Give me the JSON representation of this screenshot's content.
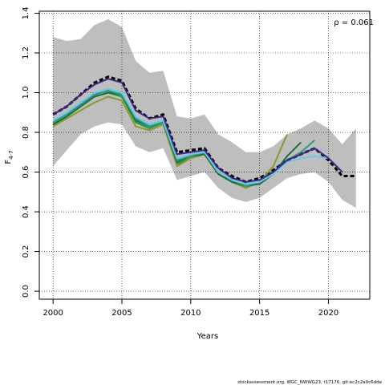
{
  "chart_data": {
    "type": "line",
    "xlabel": "Years",
    "ylabel": "F",
    "ylabel_subscript": "4-7",
    "xlim": [
      1999,
      2023
    ],
    "ylim": [
      -0.04,
      1.41
    ],
    "xticks": [
      2000,
      2005,
      2010,
      2015,
      2020
    ],
    "yticks": [
      0.0,
      0.2,
      0.4,
      0.6,
      0.8,
      1.0,
      1.2,
      1.4
    ],
    "ytick_labels": [
      "0.0",
      "0.2",
      "0.4",
      "0.6",
      "0.8",
      "1.0",
      "1.2",
      "1.4"
    ],
    "grid": true,
    "annotation": "ρ = 0.061",
    "footer": "stockassessment.org, WGC_NWWG23, r17176, git:ec2c2a0c6dde",
    "colors": {
      "band": "#bebebe",
      "base": "#000000",
      "peel_2021": "#3d2a85",
      "peel_2020": "#6ec6ea",
      "peel_2019": "#2a9a83",
      "peel_2018": "#1c6d3a",
      "peel_2017": "#8a9a2a",
      "peel_2016": "#1f9a4a"
    },
    "confidence_band": {
      "x": [
        2000,
        2001,
        2002,
        2003,
        2004,
        2005,
        2006,
        2007,
        2008,
        2009,
        2010,
        2011,
        2012,
        2013,
        2014,
        2015,
        2016,
        2017,
        2018,
        2019,
        2020,
        2021,
        2022
      ],
      "upper": [
        1.28,
        1.26,
        1.27,
        1.34,
        1.37,
        1.33,
        1.16,
        1.1,
        1.11,
        0.88,
        0.87,
        0.89,
        0.79,
        0.75,
        0.7,
        0.7,
        0.73,
        0.79,
        0.82,
        0.86,
        0.82,
        0.74,
        0.82
      ],
      "lower": [
        0.63,
        0.71,
        0.79,
        0.83,
        0.85,
        0.84,
        0.73,
        0.7,
        0.72,
        0.56,
        0.58,
        0.6,
        0.52,
        0.47,
        0.45,
        0.47,
        0.52,
        0.57,
        0.59,
        0.6,
        0.55,
        0.46,
        0.42
      ]
    },
    "series": [
      {
        "id": "base",
        "style": "dashed",
        "x": [
          2000,
          2001,
          2002,
          2003,
          2004,
          2005,
          2006,
          2007,
          2008,
          2009,
          2010,
          2011,
          2012,
          2013,
          2014,
          2015,
          2016,
          2017,
          2018,
          2019,
          2020,
          2021,
          2022
        ],
        "values": [
          0.89,
          0.93,
          0.99,
          1.05,
          1.08,
          1.06,
          0.92,
          0.87,
          0.89,
          0.7,
          0.71,
          0.72,
          0.62,
          0.58,
          0.55,
          0.57,
          0.61,
          0.66,
          0.69,
          0.72,
          0.66,
          0.58,
          0.58
        ]
      },
      {
        "id": "peel_2021",
        "x": [
          2000,
          2001,
          2002,
          2003,
          2004,
          2005,
          2006,
          2007,
          2008,
          2009,
          2010,
          2011,
          2012,
          2013,
          2014,
          2015,
          2016,
          2017,
          2018,
          2019,
          2020,
          2021
        ],
        "values": [
          0.89,
          0.93,
          0.99,
          1.04,
          1.07,
          1.05,
          0.91,
          0.87,
          0.88,
          0.69,
          0.7,
          0.71,
          0.62,
          0.57,
          0.55,
          0.56,
          0.6,
          0.66,
          0.69,
          0.72,
          0.67,
          0.6
        ]
      },
      {
        "id": "peel_2020",
        "x": [
          2000,
          2001,
          2002,
          2003,
          2004,
          2005,
          2006,
          2007,
          2008,
          2009,
          2010,
          2011,
          2012,
          2013,
          2014,
          2015,
          2016,
          2017,
          2018,
          2019,
          2020
        ],
        "values": [
          0.86,
          0.9,
          0.95,
          1.0,
          1.02,
          1.0,
          0.88,
          0.84,
          0.86,
          0.67,
          0.69,
          0.7,
          0.6,
          0.56,
          0.54,
          0.55,
          0.59,
          0.65,
          0.67,
          0.68,
          0.67
        ]
      },
      {
        "id": "peel_2019",
        "x": [
          2000,
          2001,
          2002,
          2003,
          2004,
          2005,
          2006,
          2007,
          2008,
          2009,
          2010,
          2011,
          2012,
          2013,
          2014,
          2015,
          2016,
          2017,
          2018,
          2019
        ],
        "values": [
          0.85,
          0.89,
          0.94,
          0.99,
          1.01,
          0.99,
          0.87,
          0.83,
          0.85,
          0.66,
          0.68,
          0.7,
          0.6,
          0.56,
          0.53,
          0.55,
          0.59,
          0.66,
          0.7,
          0.76
        ]
      },
      {
        "id": "peel_2018",
        "x": [
          2000,
          2001,
          2002,
          2003,
          2004,
          2005,
          2006,
          2007,
          2008,
          2009,
          2010,
          2011,
          2012,
          2013,
          2014,
          2015,
          2016,
          2017,
          2018
        ],
        "values": [
          0.84,
          0.88,
          0.93,
          0.98,
          1.0,
          0.99,
          0.86,
          0.83,
          0.85,
          0.65,
          0.68,
          0.69,
          0.59,
          0.55,
          0.53,
          0.54,
          0.59,
          0.68,
          0.75
        ]
      },
      {
        "id": "peel_2017",
        "x": [
          2000,
          2001,
          2002,
          2003,
          2004,
          2005,
          2006,
          2007,
          2008,
          2009,
          2010,
          2011,
          2012,
          2013,
          2014,
          2015,
          2016,
          2017
        ],
        "values": [
          0.83,
          0.87,
          0.91,
          0.95,
          0.98,
          0.96,
          0.83,
          0.81,
          0.84,
          0.63,
          0.67,
          0.69,
          0.59,
          0.55,
          0.52,
          0.55,
          0.63,
          0.79
        ]
      },
      {
        "id": "peel_2016",
        "x": [
          2000,
          2001,
          2002,
          2003,
          2004,
          2005,
          2006,
          2007,
          2008,
          2009,
          2010,
          2011,
          2012,
          2013,
          2014,
          2015,
          2016
        ],
        "values": [
          0.84,
          0.88,
          0.93,
          0.98,
          1.0,
          0.98,
          0.85,
          0.82,
          0.85,
          0.64,
          0.67,
          0.69,
          0.6,
          0.55,
          0.53,
          0.55,
          0.6
        ]
      }
    ]
  }
}
